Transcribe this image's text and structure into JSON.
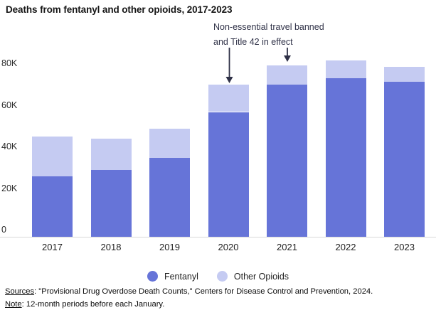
{
  "title": "Deaths from fentanyl and other opioids, 2017-2023",
  "annotation": {
    "line1": "Non-essential travel banned",
    "line2": "and Title 42 in effect",
    "arrow_color": "#2f3147"
  },
  "chart_data": {
    "type": "bar",
    "stacked": true,
    "title": "Deaths from fentanyl and other opioids, 2017-2023",
    "categories": [
      "2017",
      "2018",
      "2019",
      "2020",
      "2021",
      "2022",
      "2023"
    ],
    "series": [
      {
        "name": "Fentanyl",
        "color": "#6674d8",
        "values": [
          29000,
          32000,
          38000,
          60000,
          73000,
          76300,
          74500
        ]
      },
      {
        "name": "Other Opioids",
        "color": "#c5cbf2",
        "values": [
          19200,
          15200,
          14000,
          13000,
          9500,
          8600,
          7200
        ]
      }
    ],
    "totals": [
      48200,
      47200,
      52000,
      73000,
      82500,
      84900,
      81700
    ],
    "xlabel": "",
    "ylabel": "",
    "ytick_labels": [
      "0",
      "20K",
      "40K",
      "60K",
      "80K"
    ],
    "ytick_values": [
      0,
      20000,
      40000,
      60000,
      80000
    ],
    "ylim": [
      0,
      84900
    ],
    "grid": false,
    "legend_position": "bottom",
    "annotation_text": "Non-essential travel banned and Title 42 in effect",
    "annotation_targets": [
      "2020",
      "2021"
    ]
  },
  "legend": {
    "items": [
      {
        "label": "Fentanyl",
        "color": "#6674d8"
      },
      {
        "label": "Other Opioids",
        "color": "#c5cbf2"
      }
    ]
  },
  "footer": {
    "sources_label": "Sources",
    "sources_rest": ": \"Provisional Drug Overdose Death Counts,\" Centers for Disease Control and Prevention, 2024.",
    "note_label": "Note",
    "note_rest": ": 12-month periods before each January."
  },
  "colors": {
    "fentanyl": "#6674d8",
    "other_opioids": "#c5cbf2",
    "axis_line": "#d8d8d8",
    "text": "#151515"
  }
}
